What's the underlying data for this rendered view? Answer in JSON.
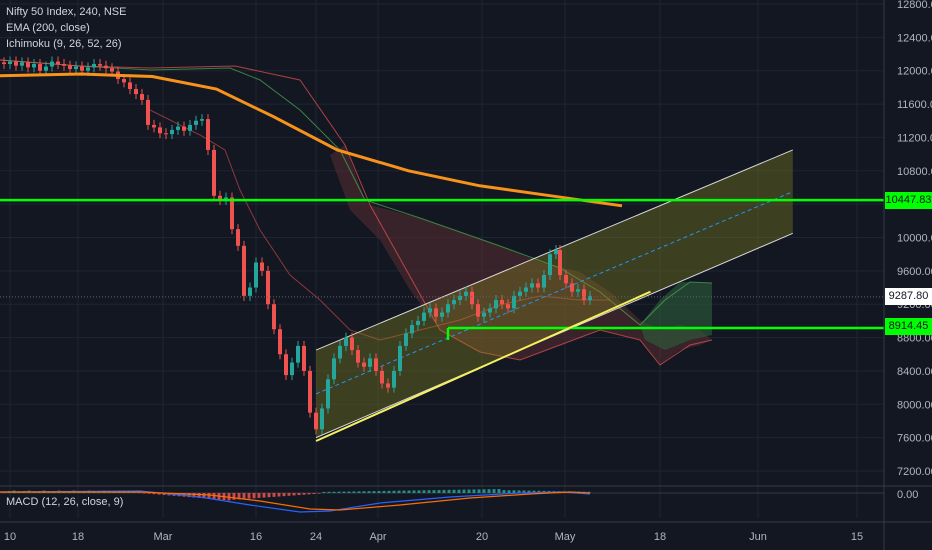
{
  "header": {
    "symbol_line": "Nifty 50 Index, 240, NSE",
    "ema_line": "EMA (200, close)",
    "ichimoku_line": "Ichimoku (9, 26, 52, 26)",
    "macd_line": "MACD (12, 26, close, 9)"
  },
  "colors": {
    "background": "#131722",
    "grid": "#1e2433",
    "up_candle": "#26a69a",
    "down_candle": "#ef5350",
    "ema": "#f7931a",
    "horizontal_level": "#00ff00",
    "channel_fill": "#8a8a1e",
    "channel_line": "#d8d8d8",
    "trendline": "#f5f060",
    "cloud_bull": "#2e5d3a",
    "cloud_bear": "#5a2d33",
    "macd_line": "#2962ff",
    "signal_line": "#ff6d00"
  },
  "chart_data": {
    "type": "candlestick",
    "title": "Nifty 50 Index, 240, NSE",
    "y_axis_labels": [
      "12800.00",
      "12400.00",
      "12000.00",
      "11600.00",
      "11200.00",
      "10800.00",
      "10400.00",
      "10000.00",
      "9600.00",
      "9200.00",
      "8800.00",
      "8400.00",
      "8000.00",
      "7600.00",
      "7200.00"
    ],
    "x_axis_labels": [
      "10",
      "18",
      "Mar",
      "16",
      "24",
      "Apr",
      "20",
      "May",
      "18",
      "Jun",
      "15"
    ],
    "ylim": [
      7000,
      12850
    ],
    "price_tags": [
      {
        "label": "10447.83",
        "value": 10447.83,
        "color": "#00ff00"
      },
      {
        "label": "9287.80",
        "value": 9287.8,
        "color": "#ffffff"
      },
      {
        "label": "8914.45",
        "value": 8914.45,
        "color": "#00ff00"
      }
    ],
    "horizontal_levels": [
      10447.83,
      8914.45
    ],
    "ema200": [
      {
        "date": "Feb 05",
        "value": 11940
      },
      {
        "date": "Feb 20",
        "value": 11960
      },
      {
        "date": "Mar 01",
        "value": 11930
      },
      {
        "date": "Mar 10",
        "value": 11780
      },
      {
        "date": "Mar 18",
        "value": 11450
      },
      {
        "date": "Mar 27",
        "value": 11050
      },
      {
        "date": "Apr 06",
        "value": 10800
      },
      {
        "date": "Apr 16",
        "value": 10620
      },
      {
        "date": "Apr 26",
        "value": 10500
      },
      {
        "date": "May 06",
        "value": 10380
      }
    ],
    "price_channel": {
      "lower": [
        {
          "date": "Mar 24",
          "value": 7600
        },
        {
          "date": "May 30",
          "value": 10050
        }
      ],
      "upper": [
        {
          "date": "Mar 24",
          "value": 8650
        },
        {
          "date": "May 30",
          "value": 11050
        }
      ]
    },
    "trendline": [
      {
        "date": "Mar 24",
        "value": 7560
      },
      {
        "date": "May 10",
        "value": 9350
      }
    ],
    "macd_axis_label": "0.00"
  }
}
